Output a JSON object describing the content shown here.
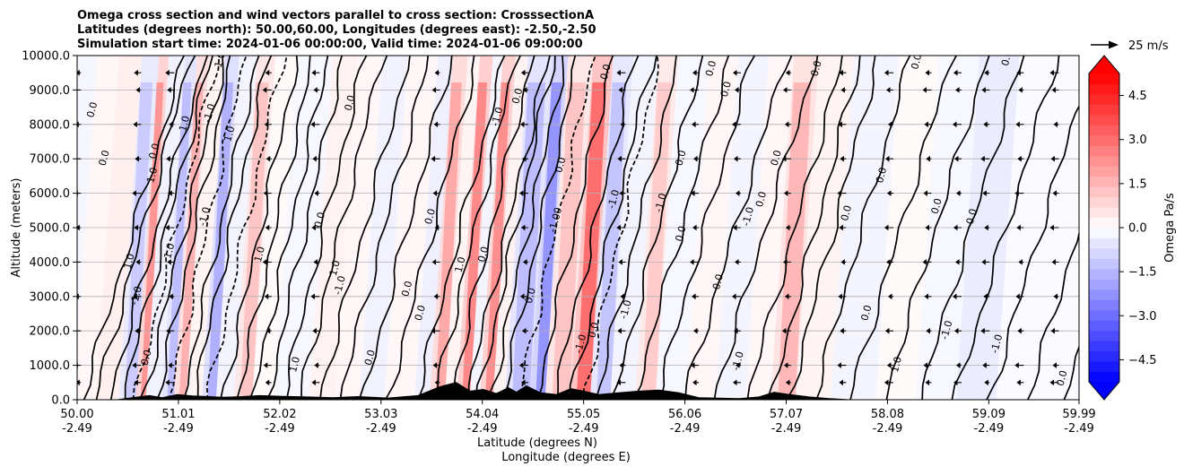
{
  "chart_data": {
    "type": "heatmap",
    "title_lines": [
      "Omega cross section and wind vectors parallel to cross section: CrosssectionA",
      "Latitudes (degrees north): 50.00,60.00, Longitudes (degrees east): -2.50,-2.50",
      "Simulation start time: 2024-01-06 00:00:00, Valid time: 2024-01-06 09:00:00"
    ],
    "xlabel_lines": [
      "Latitude (degrees N)",
      "Longitude (degrees E)"
    ],
    "ylabel": "Altitude (meters)",
    "xlim": [
      50.0,
      59.99
    ],
    "ylim": [
      0,
      10000
    ],
    "x_ticks": [
      {
        "lat": "50.00",
        "lon": "-2.49",
        "value": 50.0
      },
      {
        "lat": "51.01",
        "lon": "-2.49",
        "value": 51.01
      },
      {
        "lat": "52.02",
        "lon": "-2.49",
        "value": 52.02
      },
      {
        "lat": "53.03",
        "lon": "-2.49",
        "value": 53.03
      },
      {
        "lat": "54.04",
        "lon": "-2.49",
        "value": 54.04
      },
      {
        "lat": "55.05",
        "lon": "-2.49",
        "value": 55.05
      },
      {
        "lat": "56.06",
        "lon": "-2.49",
        "value": 56.06
      },
      {
        "lat": "57.07",
        "lon": "-2.49",
        "value": 57.07
      },
      {
        "lat": "58.08",
        "lon": "-2.49",
        "value": 58.08
      },
      {
        "lat": "59.09",
        "lon": "-2.49",
        "value": 59.09
      },
      {
        "lat": "59.99",
        "lon": "-2.49",
        "value": 59.99
      }
    ],
    "y_ticks": [
      {
        "label": "0.0",
        "value": 0
      },
      {
        "label": "1000.0",
        "value": 1000
      },
      {
        "label": "2000.0",
        "value": 2000
      },
      {
        "label": "3000.0",
        "value": 3000
      },
      {
        "label": "4000.0",
        "value": 4000
      },
      {
        "label": "5000.0",
        "value": 5000
      },
      {
        "label": "6000.0",
        "value": 6000
      },
      {
        "label": "7000.0",
        "value": 7000
      },
      {
        "label": "8000.0",
        "value": 8000
      },
      {
        "label": "9000.0",
        "value": 9000
      },
      {
        "label": "10000.0",
        "value": 10000
      }
    ],
    "grid": "horizontal",
    "colorbar": {
      "label": "Omega Pa/s",
      "range": [
        -5.25,
        5.25
      ],
      "extend": "both",
      "ticks": [
        {
          "label": "4.5",
          "value": 4.5
        },
        {
          "label": "3.0",
          "value": 3.0
        },
        {
          "label": "1.5",
          "value": 1.5
        },
        {
          "label": "0.0",
          "value": 0.0
        },
        {
          "label": "−1.5",
          "value": -1.5
        },
        {
          "label": "−3.0",
          "value": -3.0
        },
        {
          "label": "−4.5",
          "value": -4.5
        }
      ],
      "low_color": "#0000ff",
      "high_color": "#ff0000"
    },
    "vector_key": {
      "label": "25 m/s"
    },
    "bands": [
      {
        "x0": 50.0,
        "x1": 50.22,
        "v": 0.3
      },
      {
        "x0": 50.22,
        "x1": 50.45,
        "v": 0.6
      },
      {
        "x0": 50.45,
        "x1": 50.62,
        "v": -0.8
      },
      {
        "x0": 50.62,
        "x1": 50.72,
        "v": 1.6
      },
      {
        "x0": 50.72,
        "x1": 50.88,
        "v": -0.5
      },
      {
        "x0": 50.88,
        "x1": 51.0,
        "v": -1.0
      },
      {
        "x0": 51.0,
        "x1": 51.12,
        "v": 1.2
      },
      {
        "x0": 51.12,
        "x1": 51.28,
        "v": 0.4
      },
      {
        "x0": 51.28,
        "x1": 51.42,
        "v": -1.2
      },
      {
        "x0": 51.42,
        "x1": 51.6,
        "v": -0.4
      },
      {
        "x0": 51.6,
        "x1": 51.78,
        "v": 0.9
      },
      {
        "x0": 51.78,
        "x1": 52.0,
        "v": 0.2
      },
      {
        "x0": 52.0,
        "x1": 52.35,
        "v": -0.3
      },
      {
        "x0": 52.35,
        "x1": 52.6,
        "v": 0.5
      },
      {
        "x0": 52.6,
        "x1": 52.85,
        "v": 0.3
      },
      {
        "x0": 52.85,
        "x1": 53.1,
        "v": -0.5
      },
      {
        "x0": 53.1,
        "x1": 53.4,
        "v": 0.3
      },
      {
        "x0": 53.4,
        "x1": 53.55,
        "v": -0.6
      },
      {
        "x0": 53.55,
        "x1": 53.7,
        "v": 1.3
      },
      {
        "x0": 53.7,
        "x1": 53.82,
        "v": 0.4
      },
      {
        "x0": 53.82,
        "x1": 53.95,
        "v": 1.8
      },
      {
        "x0": 53.95,
        "x1": 54.05,
        "v": -0.4
      },
      {
        "x0": 54.05,
        "x1": 54.18,
        "v": 1.7
      },
      {
        "x0": 54.18,
        "x1": 54.3,
        "v": 0.5
      },
      {
        "x0": 54.3,
        "x1": 54.55,
        "v": -1.0
      },
      {
        "x0": 54.55,
        "x1": 54.7,
        "v": -1.6
      },
      {
        "x0": 54.7,
        "x1": 54.95,
        "v": 0.9
      },
      {
        "x0": 54.95,
        "x1": 55.15,
        "v": 2.2
      },
      {
        "x0": 55.15,
        "x1": 55.35,
        "v": -0.9
      },
      {
        "x0": 55.35,
        "x1": 55.6,
        "v": -0.4
      },
      {
        "x0": 55.6,
        "x1": 55.8,
        "v": 0.8
      },
      {
        "x0": 55.8,
        "x1": 56.1,
        "v": -0.3
      },
      {
        "x0": 56.1,
        "x1": 56.4,
        "v": 0.3
      },
      {
        "x0": 56.4,
        "x1": 56.7,
        "v": -0.4
      },
      {
        "x0": 56.7,
        "x1": 56.95,
        "v": 0.3
      },
      {
        "x0": 56.95,
        "x1": 57.2,
        "v": 1.1
      },
      {
        "x0": 57.2,
        "x1": 57.55,
        "v": 0.4
      },
      {
        "x0": 57.55,
        "x1": 58.0,
        "v": -0.4
      },
      {
        "x0": 58.0,
        "x1": 58.4,
        "v": 0.2
      },
      {
        "x0": 58.4,
        "x1": 58.8,
        "v": -0.3
      },
      {
        "x0": 58.8,
        "x1": 59.2,
        "v": -0.7
      },
      {
        "x0": 59.2,
        "x1": 59.99,
        "v": -0.2
      }
    ],
    "contour_lines": [
      {
        "x": 50.05,
        "lean": 0.3,
        "style": "solid"
      },
      {
        "x": 50.18,
        "lean": 0.28,
        "style": "solid"
      },
      {
        "x": 50.32,
        "lean": 0.28,
        "style": "solid"
      },
      {
        "x": 50.45,
        "lean": 0.26,
        "style": "solid"
      },
      {
        "x": 50.58,
        "lean": 0.24,
        "style": "dashed"
      },
      {
        "x": 50.66,
        "lean": 0.24,
        "style": "solid"
      },
      {
        "x": 50.8,
        "lean": 0.22,
        "style": "solid"
      },
      {
        "x": 50.92,
        "lean": 0.22,
        "style": "dashed"
      },
      {
        "x": 51.05,
        "lean": 0.22,
        "style": "solid"
      },
      {
        "x": 51.16,
        "lean": 0.22,
        "style": "solid"
      },
      {
        "x": 51.3,
        "lean": 0.22,
        "style": "dashed"
      },
      {
        "x": 51.45,
        "lean": 0.22,
        "style": "solid"
      },
      {
        "x": 51.6,
        "lean": 0.22,
        "style": "solid"
      },
      {
        "x": 51.75,
        "lean": 0.22,
        "style": "solid"
      },
      {
        "x": 51.9,
        "lean": 0.22,
        "style": "solid"
      },
      {
        "x": 52.05,
        "lean": 0.24,
        "style": "solid"
      },
      {
        "x": 52.22,
        "lean": 0.24,
        "style": "solid"
      },
      {
        "x": 52.42,
        "lean": 0.26,
        "style": "solid"
      },
      {
        "x": 52.62,
        "lean": 0.26,
        "style": "solid"
      },
      {
        "x": 52.85,
        "lean": 0.26,
        "style": "solid"
      },
      {
        "x": 53.1,
        "lean": 0.26,
        "style": "solid"
      },
      {
        "x": 53.38,
        "lean": 0.26,
        "style": "solid"
      },
      {
        "x": 53.56,
        "lean": 0.24,
        "style": "solid"
      },
      {
        "x": 53.72,
        "lean": 0.24,
        "style": "solid"
      },
      {
        "x": 53.88,
        "lean": 0.24,
        "style": "solid"
      },
      {
        "x": 54.0,
        "lean": 0.22,
        "style": "solid"
      },
      {
        "x": 54.12,
        "lean": 0.22,
        "style": "solid"
      },
      {
        "x": 54.24,
        "lean": 0.22,
        "style": "solid"
      },
      {
        "x": 54.4,
        "lean": 0.22,
        "style": "dashed"
      },
      {
        "x": 54.58,
        "lean": 0.22,
        "style": "solid"
      },
      {
        "x": 54.75,
        "lean": 0.24,
        "style": "solid"
      },
      {
        "x": 54.92,
        "lean": 0.24,
        "style": "solid"
      },
      {
        "x": 55.05,
        "lean": 0.22,
        "style": "dashed"
      },
      {
        "x": 55.18,
        "lean": 0.24,
        "style": "solid"
      },
      {
        "x": 55.35,
        "lean": 0.26,
        "style": "solid"
      },
      {
        "x": 55.55,
        "lean": 0.28,
        "style": "solid"
      },
      {
        "x": 55.78,
        "lean": 0.28,
        "style": "solid"
      },
      {
        "x": 56.05,
        "lean": 0.3,
        "style": "solid"
      },
      {
        "x": 56.35,
        "lean": 0.3,
        "style": "solid"
      },
      {
        "x": 56.68,
        "lean": 0.28,
        "style": "solid"
      },
      {
        "x": 56.92,
        "lean": 0.26,
        "style": "solid"
      },
      {
        "x": 57.1,
        "lean": 0.26,
        "style": "solid"
      },
      {
        "x": 57.35,
        "lean": 0.28,
        "style": "solid"
      },
      {
        "x": 57.7,
        "lean": 0.3,
        "style": "solid"
      },
      {
        "x": 58.05,
        "lean": 0.3,
        "style": "solid"
      },
      {
        "x": 58.4,
        "lean": 0.3,
        "style": "solid"
      },
      {
        "x": 58.75,
        "lean": 0.3,
        "style": "solid"
      },
      {
        "x": 59.1,
        "lean": 0.3,
        "style": "solid"
      },
      {
        "x": 59.48,
        "lean": 0.3,
        "style": "solid"
      },
      {
        "x": 59.85,
        "lean": 0.3,
        "style": "solid"
      }
    ],
    "contour_labels": [
      {
        "x": 50.18,
        "y": 8400,
        "text": "0.0"
      },
      {
        "x": 50.3,
        "y": 7000,
        "text": "0.0"
      },
      {
        "x": 50.55,
        "y": 4000,
        "text": "1.0"
      },
      {
        "x": 50.62,
        "y": 3000,
        "text": "-1.0"
      },
      {
        "x": 50.72,
        "y": 1200,
        "text": "0.0"
      },
      {
        "x": 50.78,
        "y": 6500,
        "text": "1.0"
      },
      {
        "x": 50.8,
        "y": 7200,
        "text": "0.0"
      },
      {
        "x": 50.95,
        "y": 4300,
        "text": "1.0"
      },
      {
        "x": 51.1,
        "y": 8000,
        "text": "1.0"
      },
      {
        "x": 51.35,
        "y": 8300,
        "text": "-1.0"
      },
      {
        "x": 51.45,
        "y": 9800,
        "text": "-1.0"
      },
      {
        "x": 51.55,
        "y": 7700,
        "text": "1.0"
      },
      {
        "x": 51.3,
        "y": 5300,
        "text": "-1.0"
      },
      {
        "x": 51.85,
        "y": 4200,
        "text": "1.0"
      },
      {
        "x": 52.2,
        "y": 1000,
        "text": "1.0"
      },
      {
        "x": 52.45,
        "y": 5200,
        "text": "0.0"
      },
      {
        "x": 52.6,
        "y": 3800,
        "text": "1.0"
      },
      {
        "x": 52.65,
        "y": 3300,
        "text": "-1.0"
      },
      {
        "x": 52.75,
        "y": 8600,
        "text": "0.0"
      },
      {
        "x": 52.95,
        "y": 1200,
        "text": "0.0"
      },
      {
        "x": 53.32,
        "y": 3200,
        "text": "0.0"
      },
      {
        "x": 53.45,
        "y": 2500,
        "text": "0.0"
      },
      {
        "x": 53.55,
        "y": 5300,
        "text": "0.0"
      },
      {
        "x": 53.85,
        "y": 3900,
        "text": "1.0"
      },
      {
        "x": 54.08,
        "y": 4200,
        "text": "0.0"
      },
      {
        "x": 54.22,
        "y": 8200,
        "text": "-1.0"
      },
      {
        "x": 54.42,
        "y": 8800,
        "text": "0.0"
      },
      {
        "x": 54.55,
        "y": 3000,
        "text": "0.0"
      },
      {
        "x": 54.8,
        "y": 5200,
        "text": "-1.00"
      },
      {
        "x": 54.85,
        "y": 6800,
        "text": "0.0"
      },
      {
        "x": 55.05,
        "y": 1600,
        "text": "-1.0"
      },
      {
        "x": 55.18,
        "y": 2000,
        "text": "0.0"
      },
      {
        "x": 55.3,
        "y": 9500,
        "text": "0.0"
      },
      {
        "x": 55.38,
        "y": 5800,
        "text": "-1.0"
      },
      {
        "x": 55.5,
        "y": 2600,
        "text": "-1.0"
      },
      {
        "x": 55.85,
        "y": 5700,
        "text": "-1.0"
      },
      {
        "x": 56.05,
        "y": 7000,
        "text": "0.0"
      },
      {
        "x": 56.05,
        "y": 4800,
        "text": "0.0"
      },
      {
        "x": 56.35,
        "y": 9600,
        "text": "0.0"
      },
      {
        "x": 56.42,
        "y": 3400,
        "text": "0.0"
      },
      {
        "x": 56.5,
        "y": 9000,
        "text": "0.0"
      },
      {
        "x": 56.62,
        "y": 1100,
        "text": "-1.0"
      },
      {
        "x": 56.72,
        "y": 5300,
        "text": "-1.0"
      },
      {
        "x": 56.85,
        "y": 5800,
        "text": "0.0"
      },
      {
        "x": 57.0,
        "y": 7000,
        "text": "0.0"
      },
      {
        "x": 57.4,
        "y": 9600,
        "text": "0.0"
      },
      {
        "x": 57.7,
        "y": 5400,
        "text": "0.0"
      },
      {
        "x": 57.9,
        "y": 2500,
        "text": "0.0"
      },
      {
        "x": 58.05,
        "y": 6500,
        "text": "0.0"
      },
      {
        "x": 58.2,
        "y": 1000,
        "text": "1.0"
      },
      {
        "x": 58.4,
        "y": 9800,
        "text": "0.0"
      },
      {
        "x": 58.6,
        "y": 5600,
        "text": "0.0"
      },
      {
        "x": 58.7,
        "y": 2000,
        "text": "-1.0"
      },
      {
        "x": 58.95,
        "y": 5300,
        "text": "0.0"
      },
      {
        "x": 59.2,
        "y": 1600,
        "text": "-1.0"
      },
      {
        "x": 59.3,
        "y": 9900,
        "text": "0.0"
      },
      {
        "x": 59.85,
        "y": 600,
        "text": "0.0"
      }
    ],
    "arrow_columns": [
      50.02,
      50.62,
      50.95,
      51.92,
      52.4,
      53.6,
      54.48,
      55.45,
      56.18,
      56.6,
      57.1,
      57.65,
      58.12,
      58.5,
      58.8,
      59.08,
      59.42,
      59.77
    ],
    "arrow_rows": [
      9500,
      9000,
      8000,
      7000,
      6000,
      5000,
      4000,
      3000,
      2000,
      1000,
      500
    ],
    "terrain": [
      {
        "x": 50.0,
        "h": 0
      },
      {
        "x": 50.4,
        "h": 0
      },
      {
        "x": 50.55,
        "h": 60
      },
      {
        "x": 50.72,
        "h": 120
      },
      {
        "x": 50.85,
        "h": 60
      },
      {
        "x": 51.0,
        "h": 150
      },
      {
        "x": 51.15,
        "h": 110
      },
      {
        "x": 51.3,
        "h": 90
      },
      {
        "x": 51.45,
        "h": 70
      },
      {
        "x": 51.65,
        "h": 90
      },
      {
        "x": 51.82,
        "h": 120
      },
      {
        "x": 52.05,
        "h": 100
      },
      {
        "x": 52.3,
        "h": 80
      },
      {
        "x": 52.55,
        "h": 60
      },
      {
        "x": 52.8,
        "h": 90
      },
      {
        "x": 53.1,
        "h": 50
      },
      {
        "x": 53.4,
        "h": 120
      },
      {
        "x": 53.62,
        "h": 380
      },
      {
        "x": 53.78,
        "h": 500
      },
      {
        "x": 53.92,
        "h": 250
      },
      {
        "x": 54.05,
        "h": 300
      },
      {
        "x": 54.18,
        "h": 180
      },
      {
        "x": 54.3,
        "h": 350
      },
      {
        "x": 54.38,
        "h": 220
      },
      {
        "x": 54.48,
        "h": 400
      },
      {
        "x": 54.62,
        "h": 200
      },
      {
        "x": 54.78,
        "h": 150
      },
      {
        "x": 54.92,
        "h": 320
      },
      {
        "x": 55.05,
        "h": 250
      },
      {
        "x": 55.2,
        "h": 150
      },
      {
        "x": 55.4,
        "h": 200
      },
      {
        "x": 55.6,
        "h": 250
      },
      {
        "x": 55.8,
        "h": 280
      },
      {
        "x": 56.0,
        "h": 200
      },
      {
        "x": 56.2,
        "h": 60
      },
      {
        "x": 56.6,
        "h": 30
      },
      {
        "x": 56.8,
        "h": 80
      },
      {
        "x": 56.95,
        "h": 220
      },
      {
        "x": 57.1,
        "h": 150
      },
      {
        "x": 57.3,
        "h": 80
      },
      {
        "x": 57.5,
        "h": 30
      },
      {
        "x": 57.7,
        "h": 0
      },
      {
        "x": 59.99,
        "h": 0
      }
    ]
  }
}
